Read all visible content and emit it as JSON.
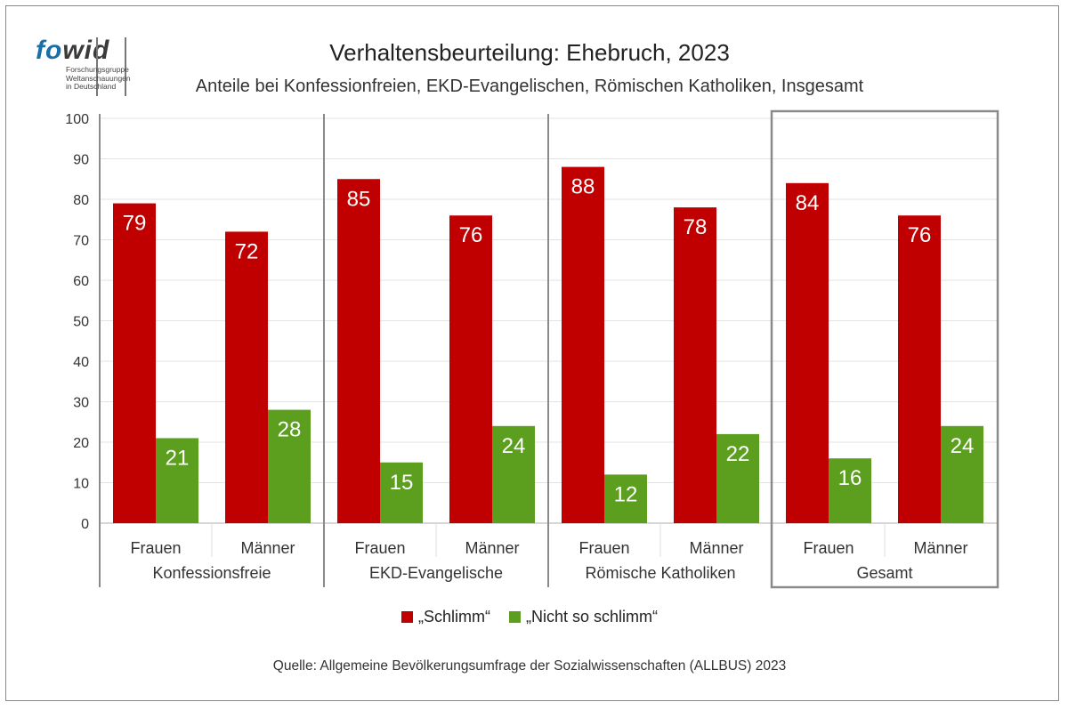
{
  "logo": {
    "brand_fo": "fo",
    "brand_wid": "wid",
    "line1": "Forschungsgruppe",
    "line2": "Weltanschauungen",
    "line3": "in Deutschland"
  },
  "source": "Quelle: Allgemeine Bevölkerungsumfrage der Sozialwissenschaften (ALLBUS) 2023",
  "chart_data": {
    "type": "bar",
    "title": "Verhaltensbeurteilung: Ehebruch, 2023",
    "subtitle": "Anteile bei Konfessionfreien, EKD-Evangelischen, Römischen Katholiken, Insgesamt",
    "ylim": [
      0,
      100
    ],
    "yticks": [
      "0",
      "10",
      "20",
      "30",
      "40",
      "50",
      "60",
      "70",
      "80",
      "90",
      "100"
    ],
    "grid": true,
    "legend_position": "bottom",
    "groups": [
      "Konfessionsfreie",
      "EKD-Evangelische",
      "Römische Katholiken",
      "Gesamt"
    ],
    "categories": [
      "Frauen",
      "Männer",
      "Frauen",
      "Männer",
      "Frauen",
      "Männer",
      "Frauen",
      "Männer"
    ],
    "series": [
      {
        "name": "„Schlimm“",
        "color": "#c00000",
        "label_color": "#ffffff",
        "values": [
          79,
          72,
          85,
          76,
          88,
          78,
          84,
          76
        ]
      },
      {
        "name": "„Nicht so schlimm“",
        "color": "#5c9e1e",
        "label_color": "#ffffff",
        "values": [
          21,
          28,
          15,
          24,
          12,
          22,
          16,
          24
        ]
      }
    ],
    "highlight_group": "Gesamt"
  }
}
